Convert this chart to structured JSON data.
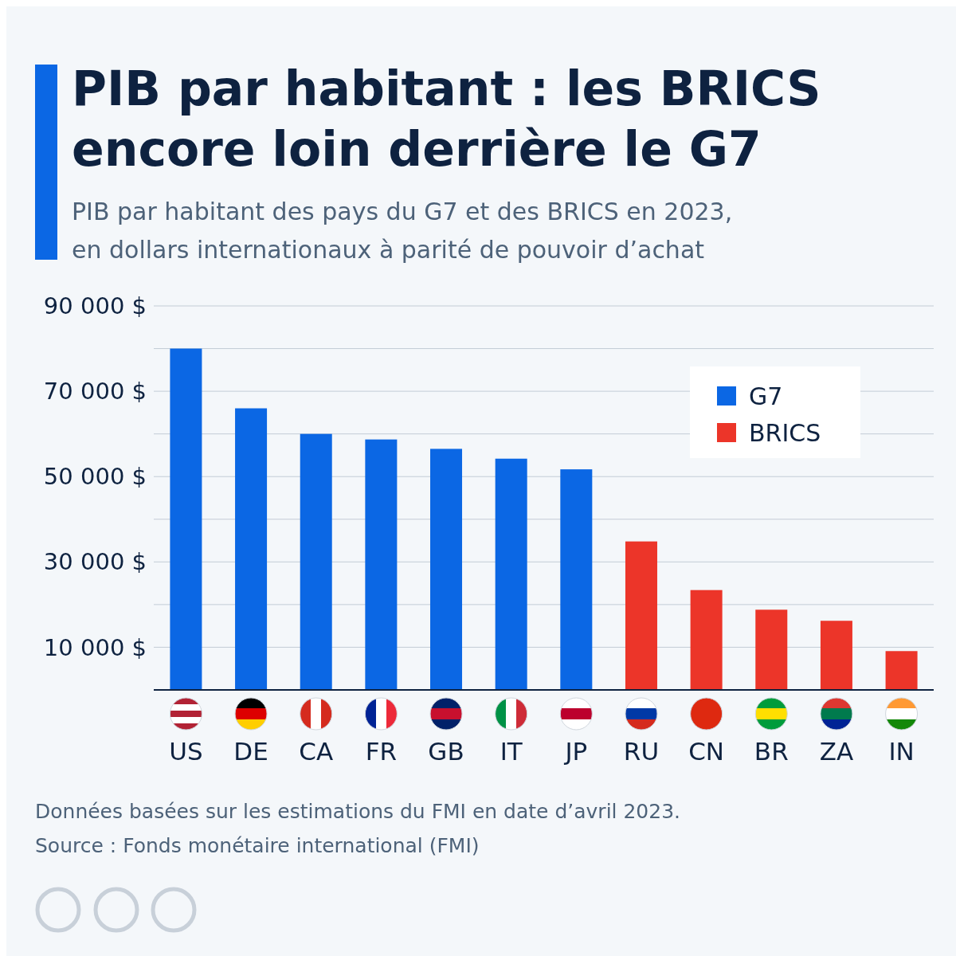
{
  "chart_data": {
    "type": "bar",
    "title": "PIB par habitant : les BRICS encore loin derrière le G7",
    "subtitle": "PIB par habitant des pays du G7 et des BRICS en 2023, en dollars internationaux à parité de pouvoir d’achat",
    "categories": [
      "US",
      "DE",
      "CA",
      "FR",
      "GB",
      "IT",
      "JP",
      "RU",
      "CN",
      "BR",
      "ZA",
      "IN"
    ],
    "series": [
      {
        "name": "G7",
        "color": "#0b67e4",
        "values": [
          80000,
          66000,
          60000,
          58700,
          56500,
          54200,
          51700,
          null,
          null,
          null,
          null,
          null
        ]
      },
      {
        "name": "BRICS",
        "color": "#ec3529",
        "values": [
          null,
          null,
          null,
          null,
          null,
          null,
          null,
          34800,
          23400,
          18800,
          16200,
          9100
        ]
      }
    ],
    "ylim": [
      0,
      90000
    ],
    "yticks": [
      {
        "value": 10000,
        "label": "10 000 $"
      },
      {
        "value": 20000,
        "label": null
      },
      {
        "value": 30000,
        "label": "30 000 $"
      },
      {
        "value": 40000,
        "label": null
      },
      {
        "value": 50000,
        "label": "50 000 $"
      },
      {
        "value": 60000,
        "label": null
      },
      {
        "value": 70000,
        "label": "70 000 $"
      },
      {
        "value": 80000,
        "label": null
      },
      {
        "value": 90000,
        "label": "90 000 $"
      }
    ],
    "grid": "y",
    "legend": "top right",
    "annotations": [
      "Données basées sur les estimations du FMI en date d’avril 2023.",
      "Source : Fonds monétaire international (FMI)"
    ]
  }
}
